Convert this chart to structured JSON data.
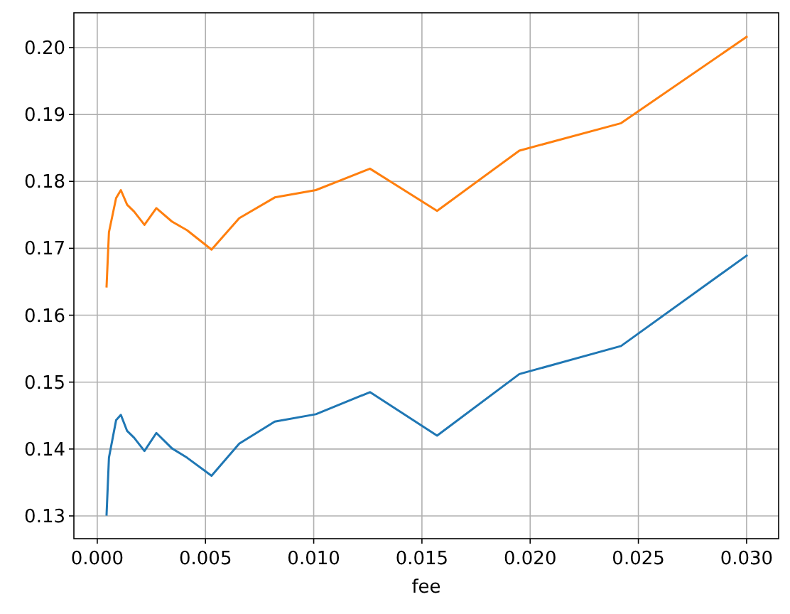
{
  "chart_data": {
    "type": "line",
    "xlabel": "fee",
    "x": [
      0.00043,
      0.00054,
      0.00087,
      0.00109,
      0.00138,
      0.0017,
      0.00218,
      0.00273,
      0.00345,
      0.00415,
      0.00528,
      0.00656,
      0.0082,
      0.0101,
      0.0126,
      0.0157,
      0.0195,
      0.0242,
      0.03
    ],
    "series": [
      {
        "color": "#1f77b4",
        "values": [
          0.1302,
          0.1387,
          0.1443,
          0.1451,
          0.1427,
          0.1417,
          0.1397,
          0.1424,
          0.1401,
          0.1387,
          0.136,
          0.1408,
          0.1441,
          0.1452,
          0.1485,
          0.142,
          0.1512,
          0.1554,
          0.1689
        ]
      },
      {
        "color": "#ff7f0e",
        "values": [
          0.1643,
          0.1724,
          0.1775,
          0.1787,
          0.1765,
          0.1755,
          0.1735,
          0.176,
          0.174,
          0.1727,
          0.1698,
          0.1745,
          0.1776,
          0.1787,
          0.1819,
          0.1756,
          0.1846,
          0.1887,
          0.2016
        ]
      }
    ],
    "xlim": [
      -0.00108,
      0.03148
    ],
    "ylim": [
      0.1266,
      0.2052
    ],
    "xticks": [
      {
        "value": 0,
        "label": "0.000"
      },
      0.005,
      {
        "value": 0.01,
        "label": "0.010"
      },
      0.015,
      {
        "value": 0.02,
        "label": "0.020"
      },
      0.025,
      {
        "value": 0.03,
        "label": "0.030"
      }
    ],
    "yticks": [
      0.13,
      0.14,
      0.15,
      0.16,
      0.17,
      0.18,
      0.19,
      {
        "value": 0.2,
        "label": "0.20"
      }
    ],
    "grid": true
  }
}
